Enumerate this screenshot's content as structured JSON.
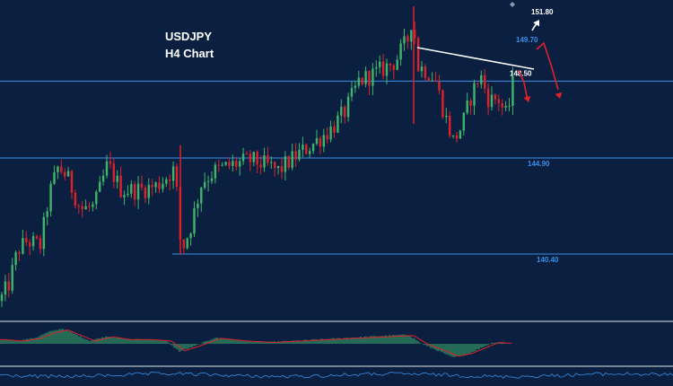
{
  "header": {
    "symbol": "USDJPY",
    "timeframe": "H4 Chart"
  },
  "colors": {
    "background": "#0b2040",
    "up_candle": "#3fb56b",
    "down_candle": "#e0202a",
    "level_line": "#3a8ee6",
    "level_label": "#3a8ee6",
    "trendline": "#ffffff",
    "target_up": "#ffffff",
    "target_down": "#e0202a",
    "macd_pos": "#3fb56b",
    "macd_neg": "#3fb56b",
    "signal": "#e0202a",
    "rsi_line": "#3a8ee6"
  },
  "chart_data": {
    "type": "candlestick",
    "symbol": "USDJPY",
    "timeframe": "H4",
    "y_range": [
      137.5,
      152.3
    ],
    "levels": [
      {
        "value": 148.5,
        "label": "148.50",
        "label_color": "white"
      },
      {
        "value": 144.9,
        "label": "144.90",
        "label_color": "blue"
      },
      {
        "value": 140.4,
        "label": "140.40",
        "label_color": "blue"
      }
    ],
    "targets": [
      {
        "value": 151.8,
        "label": "151.80",
        "label_color": "white"
      },
      {
        "value": 149.7,
        "label": "149.70",
        "label_color": "blue"
      }
    ],
    "price_path": [
      [
        0,
        138.2
      ],
      [
        10,
        139.0
      ],
      [
        20,
        140.6
      ],
      [
        30,
        141.0
      ],
      [
        45,
        140.8
      ],
      [
        55,
        143.2
      ],
      [
        65,
        144.5
      ],
      [
        75,
        144.0
      ],
      [
        90,
        142.5
      ],
      [
        105,
        142.6
      ],
      [
        120,
        144.6
      ],
      [
        135,
        143.4
      ],
      [
        155,
        143.4
      ],
      [
        175,
        143.6
      ],
      [
        195,
        144.4
      ],
      [
        202,
        140.5
      ],
      [
        212,
        141.6
      ],
      [
        225,
        143.8
      ],
      [
        240,
        144.3
      ],
      [
        260,
        144.6
      ],
      [
        280,
        144.8
      ],
      [
        300,
        144.5
      ],
      [
        310,
        144.3
      ],
      [
        330,
        145.0
      ],
      [
        350,
        145.6
      ],
      [
        370,
        146.3
      ],
      [
        385,
        147.1
      ],
      [
        400,
        148.5
      ],
      [
        420,
        148.9
      ],
      [
        440,
        149.4
      ],
      [
        455,
        150.5
      ],
      [
        460,
        151.7
      ],
      [
        465,
        149.2
      ],
      [
        475,
        149.0
      ],
      [
        485,
        148.6
      ],
      [
        495,
        147.0
      ],
      [
        505,
        145.7
      ],
      [
        515,
        146.4
      ],
      [
        525,
        147.8
      ],
      [
        535,
        148.8
      ],
      [
        545,
        147.6
      ],
      [
        555,
        147.7
      ],
      [
        565,
        146.8
      ],
      [
        572,
        148.5
      ]
    ],
    "indicator_macd_path": [
      [
        0,
        0.3
      ],
      [
        20,
        0.2
      ],
      [
        40,
        0.4
      ],
      [
        55,
        0.8
      ],
      [
        70,
        1.0
      ],
      [
        85,
        0.6
      ],
      [
        100,
        0.2
      ],
      [
        120,
        0.5
      ],
      [
        140,
        0.3
      ],
      [
        165,
        0.3
      ],
      [
        185,
        0.2
      ],
      [
        200,
        -0.5
      ],
      [
        215,
        -0.2
      ],
      [
        240,
        0.4
      ],
      [
        270,
        0.2
      ],
      [
        300,
        0.1
      ],
      [
        330,
        0.2
      ],
      [
        360,
        0.3
      ],
      [
        390,
        0.4
      ],
      [
        420,
        0.5
      ],
      [
        455,
        0.6
      ],
      [
        470,
        0.0
      ],
      [
        490,
        -0.5
      ],
      [
        505,
        -0.9
      ],
      [
        520,
        -0.7
      ],
      [
        535,
        -0.3
      ],
      [
        550,
        0.1
      ],
      [
        570,
        0.0
      ]
    ]
  }
}
